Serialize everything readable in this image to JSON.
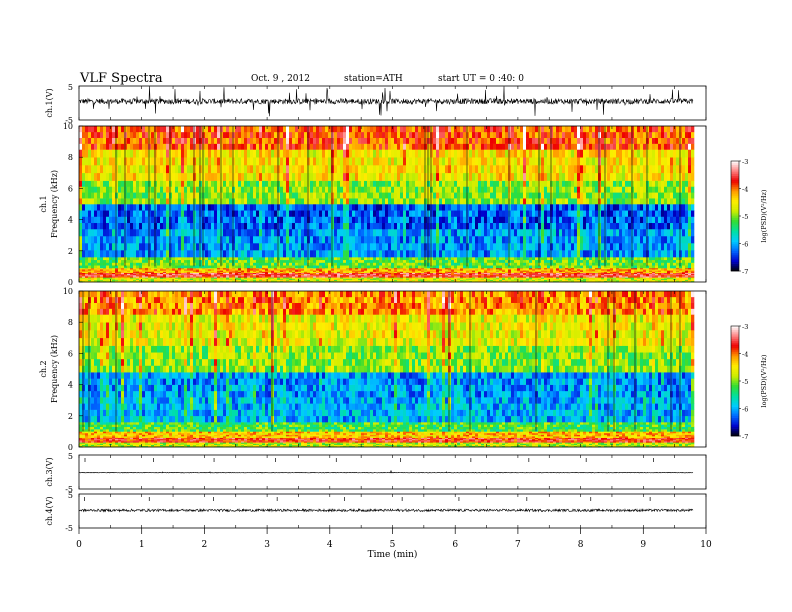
{
  "header": {
    "title": "VLF  Spectra",
    "date": "Oct. 9  , 2012",
    "station": "station=ATH",
    "start": "start  UT  =    0 :40: 0"
  },
  "chart_data": [
    {
      "type": "line",
      "panel": "ch1-waveform",
      "ylabel": "ch.1(V)",
      "y_ticks": [
        "5",
        "-5"
      ],
      "ylim": [
        -5,
        5
      ],
      "x_range": [
        0,
        9.8
      ],
      "baseline_v": 0.5,
      "noise": "dense high-frequency signal with frequent spikes"
    },
    {
      "type": "heatmap",
      "panel": "ch1-spectrogram",
      "ylabel": "ch.1\nFrequency  (kHz)",
      "y_ticks": [
        "0",
        "2",
        "4",
        "6",
        "8",
        "10"
      ],
      "ylim": [
        0,
        10
      ],
      "x_range": [
        0,
        9.8
      ],
      "colorbar": {
        "label": "log(PSD)(V²/Hz)",
        "ticks": [
          "-3",
          "-4",
          "-5",
          "-6",
          "-7"
        ],
        "range": [
          -7,
          -3
        ],
        "colors": [
          "#000000",
          "#0000cc",
          "#0066ff",
          "#00ccff",
          "#00e0a0",
          "#33dd33",
          "#ccee00",
          "#ffee00",
          "#ff9900",
          "#ee0000",
          "#ff8080",
          "#ffffff"
        ]
      },
      "bands_logpsd": [
        {
          "f": [
            0.0,
            0.3
          ],
          "v": -4.7
        },
        {
          "f": [
            0.3,
            0.6
          ],
          "v": -3.6
        },
        {
          "f": [
            0.6,
            0.9
          ],
          "v": -4.2
        },
        {
          "f": [
            0.9,
            1.6
          ],
          "v": -5.1
        },
        {
          "f": [
            1.6,
            3.4
          ],
          "v": -6.1
        },
        {
          "f": [
            3.4,
            5.0
          ],
          "v": -6.3
        },
        {
          "f": [
            5.0,
            6.5
          ],
          "v": -5.0
        },
        {
          "f": [
            6.5,
            8.5
          ],
          "v": -4.5
        },
        {
          "f": [
            8.5,
            10.0
          ],
          "v": -3.9
        }
      ]
    },
    {
      "type": "heatmap",
      "panel": "ch2-spectrogram",
      "ylabel": "ch.2\nFrequency  (kHz)",
      "y_ticks": [
        "0",
        "2",
        "4",
        "6",
        "8",
        "10"
      ],
      "ylim": [
        0,
        10
      ],
      "x_range": [
        0,
        9.8
      ],
      "colorbar": {
        "label": "log(PSD)(V²/Hz)",
        "ticks": [
          "-3",
          "-4",
          "-5",
          "-6",
          "-7"
        ],
        "range": [
          -7,
          -3
        ]
      },
      "bands_logpsd": [
        {
          "f": [
            0.0,
            0.3
          ],
          "v": -4.8
        },
        {
          "f": [
            0.3,
            0.6
          ],
          "v": -3.7
        },
        {
          "f": [
            0.6,
            1.0
          ],
          "v": -4.3
        },
        {
          "f": [
            1.0,
            1.6
          ],
          "v": -5.2
        },
        {
          "f": [
            1.6,
            3.2
          ],
          "v": -6.0
        },
        {
          "f": [
            3.2,
            4.8
          ],
          "v": -6.1
        },
        {
          "f": [
            4.8,
            6.5
          ],
          "v": -5.0
        },
        {
          "f": [
            6.5,
            8.5
          ],
          "v": -4.6
        },
        {
          "f": [
            8.5,
            10.0
          ],
          "v": -4.1
        }
      ]
    },
    {
      "type": "line",
      "panel": "ch3-waveform",
      "ylabel": "ch.3(V)",
      "y_ticks": [
        "5",
        "-5"
      ],
      "ylim": [
        -5,
        5
      ],
      "x_range": [
        0,
        9.8
      ],
      "baseline_v": -0.2,
      "noise": "nearly flat"
    },
    {
      "type": "line",
      "panel": "ch4-waveform",
      "ylabel": "ch.4(V)",
      "y_ticks": [
        "5",
        "-5"
      ],
      "ylim": [
        -5,
        5
      ],
      "x_range": [
        0,
        9.8
      ],
      "baseline_v": 0.2,
      "noise": "thin band of low-amplitude noise"
    }
  ],
  "x_axis": {
    "label": "Time  (min)",
    "ticks": [
      "0",
      "1",
      "2",
      "3",
      "4",
      "5",
      "6",
      "7",
      "8",
      "9",
      "10"
    ],
    "range": [
      0,
      10
    ]
  }
}
